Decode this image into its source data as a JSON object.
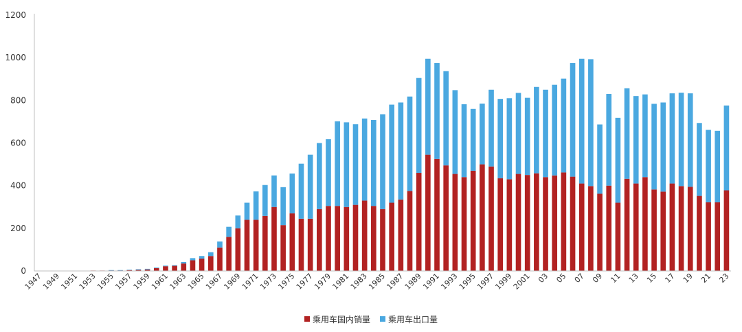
{
  "chart_data": {
    "type": "bar",
    "stacked": true,
    "ylim": [
      0,
      1200
    ],
    "yticks": [
      0,
      200,
      400,
      600,
      800,
      1000,
      1200
    ],
    "categories": [
      "1947",
      "1948",
      "1949",
      "1950",
      "1951",
      "1952",
      "1953",
      "1954",
      "1955",
      "1956",
      "1957",
      "1958",
      "1959",
      "1960",
      "1961",
      "1962",
      "1963",
      "1964",
      "1965",
      "1966",
      "1967",
      "1968",
      "1969",
      "1970",
      "1971",
      "1972",
      "1973",
      "1974",
      "1975",
      "1976",
      "1977",
      "1978",
      "1979",
      "1980",
      "1981",
      "1982",
      "1983",
      "1984",
      "1985",
      "1986",
      "1987",
      "1988",
      "1989",
      "1990",
      "1991",
      "1992",
      "1993",
      "1994",
      "1995",
      "1996",
      "1997",
      "1998",
      "1999",
      "2000",
      "2001",
      "2002",
      "2003",
      "2004",
      "2005",
      "2006",
      "2007",
      "2008",
      "2009",
      "2010",
      "2011",
      "2012",
      "2013",
      "2014",
      "2015",
      "2016",
      "2017",
      "2018",
      "2019",
      "2020",
      "2021",
      "2022",
      "2023"
    ],
    "xtick_labels": [
      "1947",
      "",
      "1949",
      "",
      "1951",
      "",
      "1953",
      "",
      "1955",
      "",
      "1957",
      "",
      "1959",
      "",
      "1961",
      "",
      "1963",
      "",
      "1965",
      "",
      "1967",
      "",
      "1969",
      "",
      "1971",
      "",
      "1973",
      "",
      "1975",
      "",
      "1977",
      "",
      "1979",
      "",
      "1981",
      "",
      "1983",
      "",
      "1985",
      "",
      "1987",
      "",
      "1989",
      "",
      "1991",
      "",
      "1993",
      "",
      "1995",
      "",
      "1997",
      "",
      "1999",
      "",
      "2001",
      "",
      "03",
      "",
      "05",
      "",
      "07",
      "",
      "09",
      "",
      "11",
      "",
      "13",
      "",
      "15",
      "",
      "17",
      "",
      "19",
      "",
      "21",
      "",
      "23"
    ],
    "series": [
      {
        "name": "乘用车国内销量",
        "color": "#b22222",
        "values": [
          0,
          0,
          0,
          0,
          0,
          1,
          2,
          2,
          3,
          3,
          4,
          5,
          7,
          13,
          22,
          24,
          35,
          50,
          58,
          70,
          110,
          160,
          200,
          240,
          240,
          258,
          300,
          215,
          270,
          245,
          245,
          290,
          305,
          305,
          300,
          310,
          330,
          305,
          290,
          320,
          335,
          375,
          460,
          545,
          525,
          495,
          455,
          440,
          470,
          500,
          490,
          435,
          430,
          455,
          450,
          458,
          440,
          448,
          462,
          442,
          410,
          398,
          362,
          400,
          320,
          432,
          410,
          440,
          382,
          372,
          410,
          398,
          395,
          352,
          322,
          322,
          378
        ]
      },
      {
        "name": "乘用车出口量",
        "color": "#4aa8e0",
        "values": [
          0,
          0,
          0,
          0,
          0,
          0,
          0,
          0,
          1,
          1,
          2,
          3,
          3,
          3,
          3,
          3,
          7,
          10,
          12,
          18,
          28,
          47,
          60,
          80,
          133,
          145,
          148,
          178,
          187,
          258,
          300,
          310,
          313,
          397,
          397,
          378,
          385,
          403,
          445,
          460,
          455,
          443,
          445,
          450,
          450,
          442,
          393,
          342,
          290,
          285,
          360,
          372,
          380,
          380,
          362,
          405,
          410,
          425,
          440,
          533,
          585,
          595,
          325,
          430,
          398,
          425,
          410,
          388,
          402,
          418,
          423,
          438,
          438,
          342,
          340,
          335,
          398
        ]
      }
    ]
  }
}
